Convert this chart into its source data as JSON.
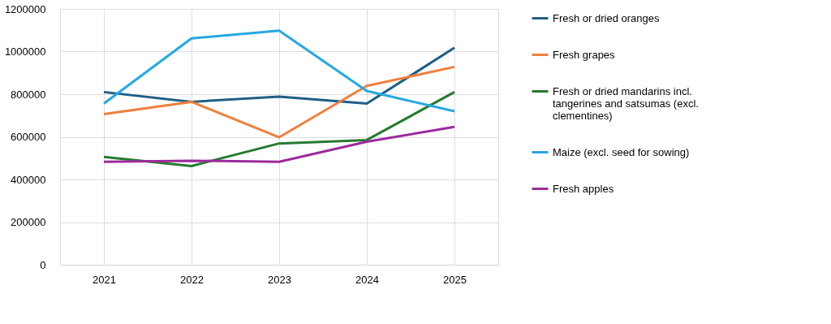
{
  "chart_data": {
    "type": "line",
    "categories": [
      "2021",
      "2022",
      "2023",
      "2024",
      "2025"
    ],
    "series": [
      {
        "name": "Fresh or dried oranges",
        "color": "#1f5f86",
        "values": [
          810000,
          764000,
          789000,
          756000,
          1018000
        ]
      },
      {
        "name": "Fresh grapes",
        "color": "#f07f3c",
        "values": [
          707000,
          764000,
          598000,
          839000,
          928000
        ]
      },
      {
        "name": "Fresh or dried mandarins incl. tangerines and satsumas (excl. clementines)",
        "color": "#267a30",
        "values": [
          506000,
          463000,
          569000,
          585000,
          810000
        ]
      },
      {
        "name": "Maize (excl. seed for sowing)",
        "color": "#25a8e0",
        "values": [
          756000,
          1062000,
          1098000,
          815000,
          720000
        ]
      },
      {
        "name": "Fresh apples",
        "color": "#9c2a9c",
        "values": [
          483000,
          488000,
          483000,
          577000,
          647000
        ]
      }
    ],
    "ylim": [
      0,
      1200000
    ],
    "yticks": [
      0,
      200000,
      400000,
      600000,
      800000,
      1000000,
      1200000
    ],
    "grid": true,
    "legend": "right",
    "marker": "none",
    "line_style": "solid"
  }
}
